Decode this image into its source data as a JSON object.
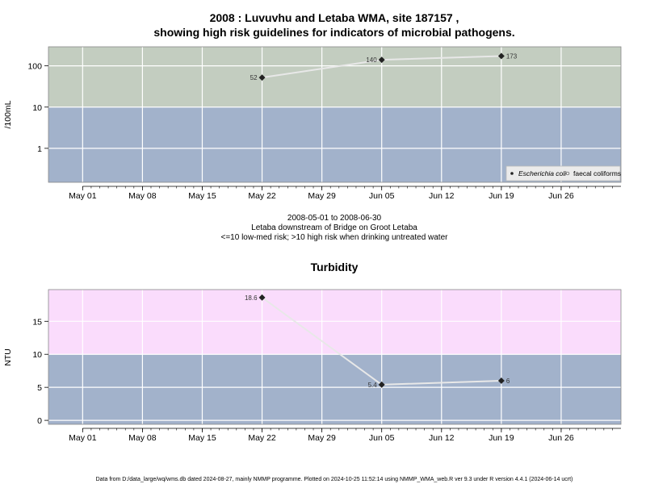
{
  "colors": {
    "high_risk_band": "#c3cdc0",
    "low_risk_band": "#a2b2cb",
    "turbidity_high_band": "#fadcfc",
    "grid": "#ffffff",
    "line": "#e8e8e8",
    "marker": "#222222",
    "axis": "#000000"
  },
  "top_title_line1": "2008 : Luvuvhu and Letaba WMA, site 187157 ,",
  "top_title_line2": "showing high risk guidelines for indicators of microbial pathogens.",
  "subtitle_lines": [
    "2008-05-01 to 2008-06-30",
    "Letaba downstream of Bridge on Groot Letaba",
    "<=10 low-med risk; >10 high risk when drinking untreated water"
  ],
  "bottom_title": "Turbidity",
  "footer": "Data from D:/data_large/wq/wms.db dated 2024-08-27, mainly NMMP programme. Plotted on 2024-10-25 11:52:14 using NMMP_WMA_web.R ver 9.3 under R version 4.4.1 (2024-06-14 ucrt)",
  "chart_data": [
    {
      "type": "line",
      "x_axis": "date",
      "xlim": [
        "2008-04-27",
        "2008-07-03"
      ],
      "x_tick_labels": [
        "May 01",
        "May 08",
        "May 15",
        "May 22",
        "May 29",
        "Jun 05",
        "Jun 12",
        "Jun 19",
        "Jun 26"
      ],
      "x_tick_dates": [
        "2008-05-01",
        "2008-05-08",
        "2008-05-15",
        "2008-05-22",
        "2008-05-29",
        "2008-06-05",
        "2008-06-12",
        "2008-06-19",
        "2008-06-26"
      ],
      "ylabel": "/100mL",
      "yscale": "log",
      "ylim": [
        0.15,
        290
      ],
      "y_tick_labels": [
        "1",
        "10",
        "100"
      ],
      "y_ticks": [
        1,
        10,
        100
      ],
      "guideline": 10,
      "series": [
        {
          "name": "Escherichia coli",
          "x": [
            "2008-05-22",
            "2008-06-05",
            "2008-06-19"
          ],
          "y": [
            52,
            140,
            173
          ],
          "point_labels": [
            "52",
            "140",
            "173"
          ]
        }
      ],
      "legend": {
        "position": "bottom-right",
        "entries": [
          "Escherichia coli",
          "faecal coliforms"
        ]
      },
      "grid": true
    },
    {
      "type": "line",
      "x_axis": "date",
      "xlim": [
        "2008-04-27",
        "2008-07-03"
      ],
      "x_tick_labels": [
        "May 01",
        "May 08",
        "May 15",
        "May 22",
        "May 29",
        "Jun 05",
        "Jun 12",
        "Jun 19",
        "Jun 26"
      ],
      "x_tick_dates": [
        "2008-05-01",
        "2008-05-08",
        "2008-05-15",
        "2008-05-22",
        "2008-05-29",
        "2008-06-05",
        "2008-06-12",
        "2008-06-19",
        "2008-06-26"
      ],
      "title": "Turbidity",
      "ylabel": "NTU",
      "ylim": [
        -0.6,
        19.8
      ],
      "y_tick_labels": [
        "0",
        "5",
        "10",
        "15"
      ],
      "y_ticks": [
        0,
        5,
        10,
        15
      ],
      "guideline": 10,
      "series": [
        {
          "x": [
            "2008-05-22",
            "2008-06-05",
            "2008-06-19"
          ],
          "y": [
            18.6,
            5.4,
            6
          ],
          "point_labels": [
            "18.6",
            "5.4",
            "6"
          ]
        }
      ],
      "grid": true
    }
  ]
}
